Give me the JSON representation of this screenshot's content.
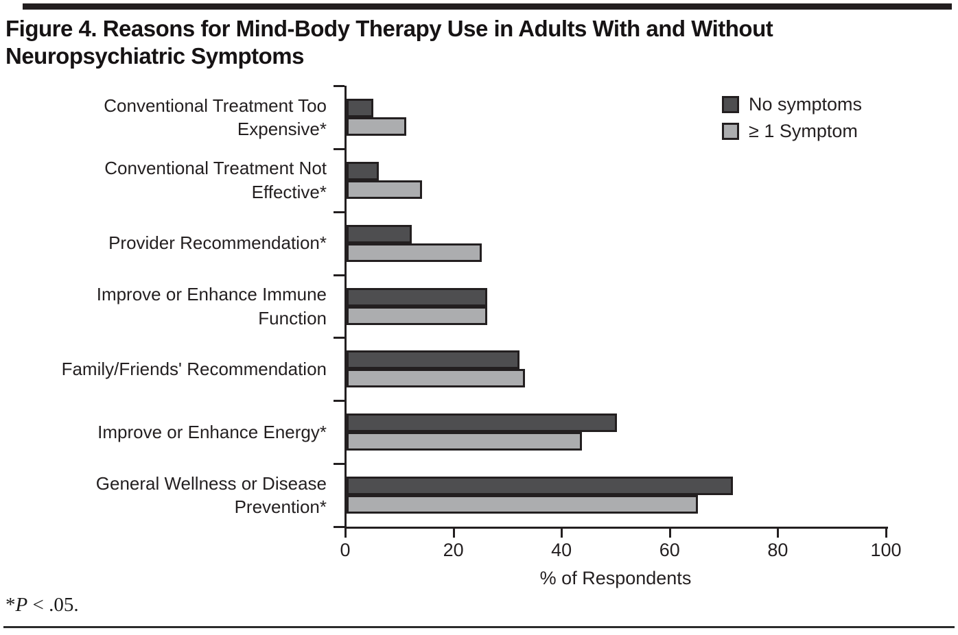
{
  "figure": {
    "footnote": {
      "prefix": "*",
      "p": "P",
      "suffix": " < .05."
    }
  },
  "chart_data": {
    "type": "bar",
    "orientation": "horizontal",
    "title": "Figure 4. Reasons for Mind-Body Therapy Use in Adults With and Without Neuropsychiatric Symptoms",
    "categories": [
      "Conventional Treatment Too Expensive*",
      "Conventional Treatment Not Effective*",
      "Provider Recommendation*",
      "Improve or Enhance Immune Function",
      "Family/Friends' Recommendation",
      "Improve or Enhance Energy*",
      "General Wellness or Disease Prevention*"
    ],
    "series": [
      {
        "name": "No symptoms",
        "color": "#4e4e50",
        "values": [
          5,
          6,
          12,
          26,
          32,
          50,
          71.5
        ]
      },
      {
        "name": "≥ 1 Symptom",
        "color": "#acadaf",
        "values": [
          11,
          14,
          25,
          26,
          33,
          43.5,
          65
        ]
      }
    ],
    "xlabel": "% of Respondents",
    "xlim": [
      0,
      100
    ],
    "xticks": [
      0,
      20,
      40,
      60,
      80,
      100
    ],
    "grid": false,
    "legend_position": "top-right",
    "bar_border_color": "#231f20"
  }
}
